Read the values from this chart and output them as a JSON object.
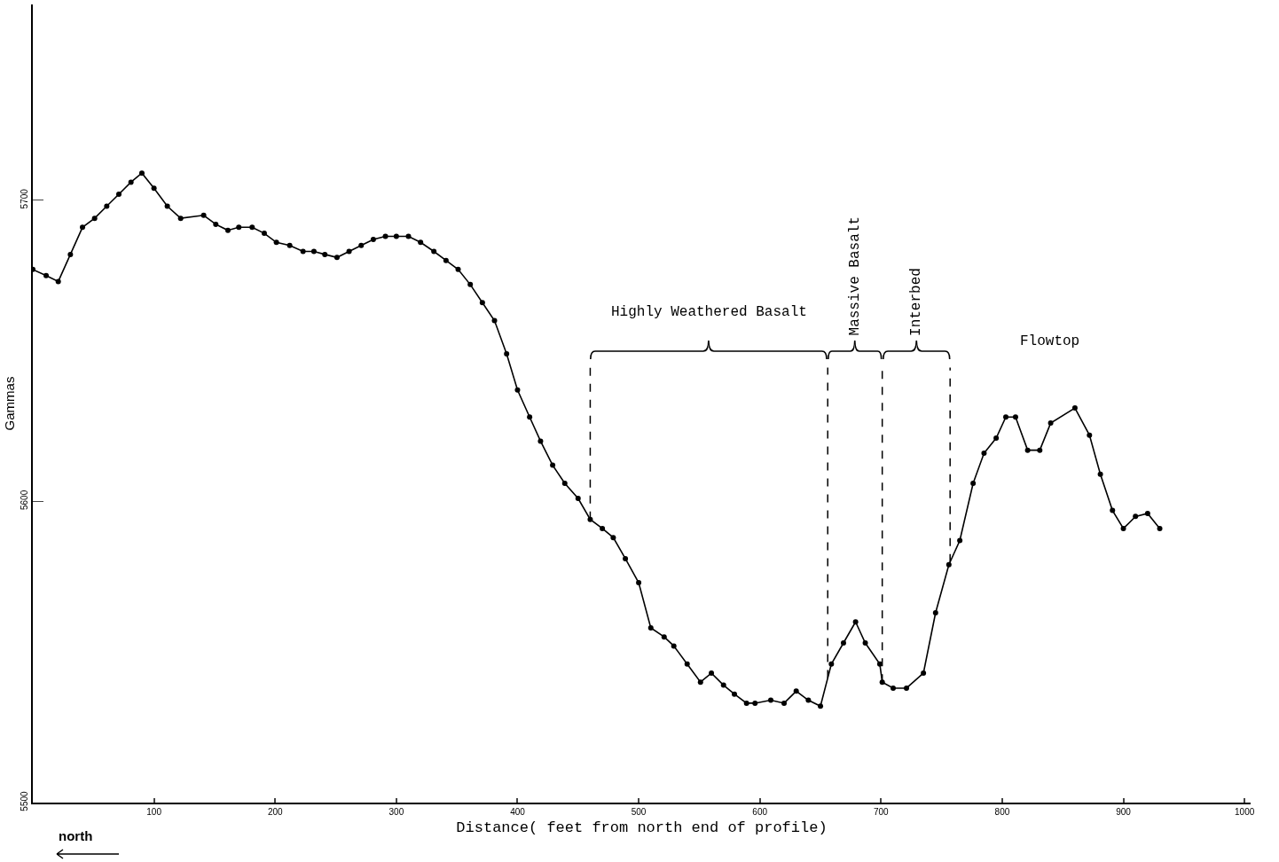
{
  "chart_data": {
    "type": "line",
    "xlabel": "Distance( feet from north end of profile)",
    "ylabel": "Gammas",
    "x": [
      0,
      11,
      21,
      31,
      41,
      51,
      61,
      71,
      81,
      90,
      100,
      111,
      122,
      141,
      151,
      161,
      170,
      181,
      191,
      201,
      212,
      223,
      232,
      241,
      251,
      261,
      271,
      281,
      291,
      300,
      310,
      320,
      331,
      341,
      351,
      361,
      371,
      381,
      391,
      400,
      410,
      419,
      429,
      439,
      450,
      460,
      470,
      479,
      489,
      500,
      510,
      521,
      529,
      540,
      551,
      560,
      570,
      579,
      589,
      596,
      609,
      620,
      630,
      640,
      650,
      659,
      669,
      679,
      687,
      699,
      701,
      710,
      721,
      735,
      745,
      756,
      765,
      776,
      785,
      795,
      803,
      811,
      821,
      831,
      840,
      860,
      872,
      881,
      891,
      900,
      910,
      920,
      930
    ],
    "series": [
      {
        "color": "#000000",
        "values": [
          5677,
          5675,
          5673,
          5682,
          5691,
          5694,
          5698,
          5702,
          5706,
          5709,
          5704,
          5698,
          5694,
          5695,
          5692,
          5690,
          5691,
          5691,
          5689,
          5686,
          5685,
          5683,
          5683,
          5682,
          5681,
          5683,
          5685,
          5687,
          5688,
          5688,
          5688,
          5686,
          5683,
          5680,
          5677,
          5672,
          5666,
          5660,
          5649,
          5637,
          5628,
          5620,
          5612,
          5606,
          5601,
          5594,
          5591,
          5588,
          5581,
          5573,
          5558,
          5555,
          5552,
          5546,
          5540,
          5543,
          5539,
          5536,
          5533,
          5533,
          5534,
          5533,
          5537,
          5534,
          5532,
          5546,
          5553,
          5560,
          5553,
          5546,
          5540,
          5538,
          5538,
          5543,
          5563,
          5579,
          5587,
          5606,
          5616,
          5621,
          5628,
          5628,
          5617,
          5617,
          5626,
          5631,
          5622,
          5609,
          5597,
          5591,
          5595,
          5596,
          5591
        ]
      }
    ],
    "xlim": [
      0,
      1005
    ],
    "xticks": [
      100,
      200,
      300,
      400,
      500,
      600,
      700,
      800,
      900,
      1000
    ],
    "ylim": [
      5500,
      5765
    ],
    "yticks": [
      5500,
      5600,
      5700
    ],
    "grid": false,
    "marker": "circle",
    "line_style": "solid",
    "ref_lines": [
      {
        "axis": "x",
        "value": 460,
        "line_style": "dashed"
      },
      {
        "axis": "x",
        "value": 656,
        "line_style": "dashed"
      },
      {
        "axis": "x",
        "value": 701,
        "line_style": "dashed"
      },
      {
        "axis": "x",
        "value": 757,
        "line_style": "dashed"
      }
    ],
    "annotations": [
      "Highly Weathered Basalt",
      "Massive Basalt",
      "Interbed",
      "Flowtop",
      "north"
    ]
  }
}
